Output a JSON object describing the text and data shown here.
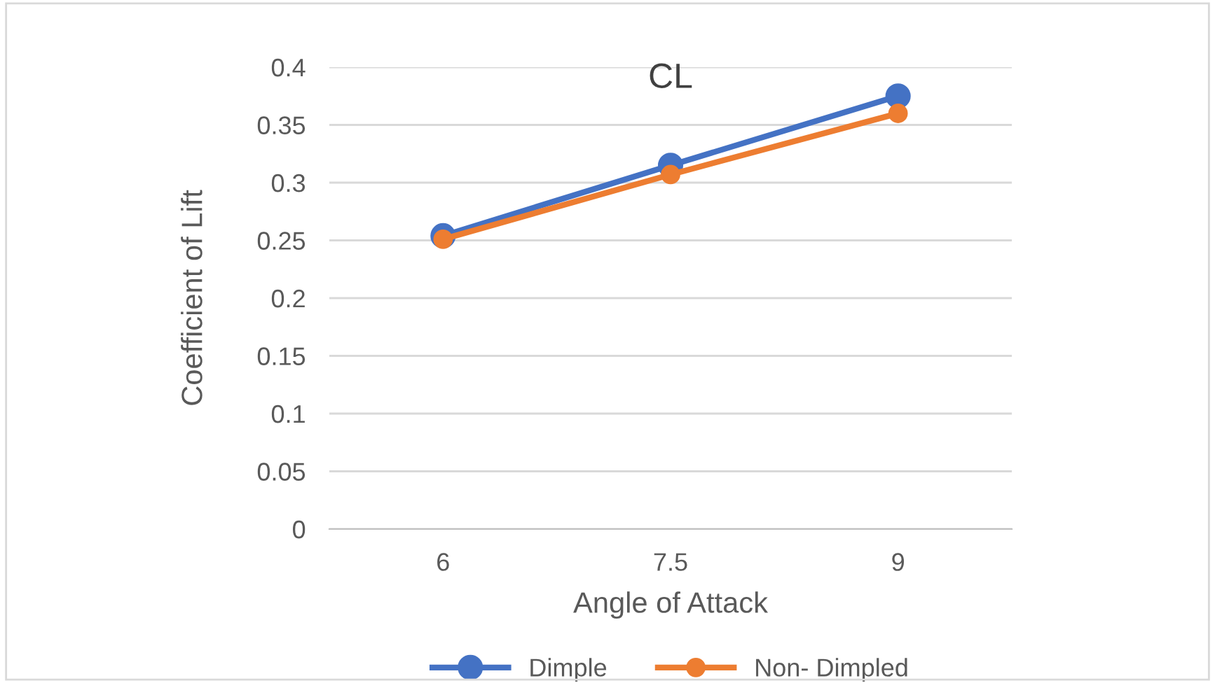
{
  "chart_data": {
    "type": "line",
    "title": "CL",
    "xlabel": "Angle of Attack",
    "ylabel": "Coefficient of Lift",
    "categories": [
      "6",
      "7.5",
      "9"
    ],
    "series": [
      {
        "name": "Dimple",
        "color": "#4472c4",
        "values": [
          0.254,
          0.315,
          0.375
        ]
      },
      {
        "name": "Non- Dimpled",
        "color": "#ed7d31",
        "values": [
          0.251,
          0.307,
          0.36
        ]
      }
    ],
    "ylim": [
      0,
      0.4
    ],
    "yticks": [
      0,
      0.05,
      0.1,
      0.15,
      0.2,
      0.25,
      0.3,
      0.35,
      0.4
    ],
    "grid": "y",
    "legend": "bottom",
    "marker": "circle",
    "line_style": "solid"
  }
}
